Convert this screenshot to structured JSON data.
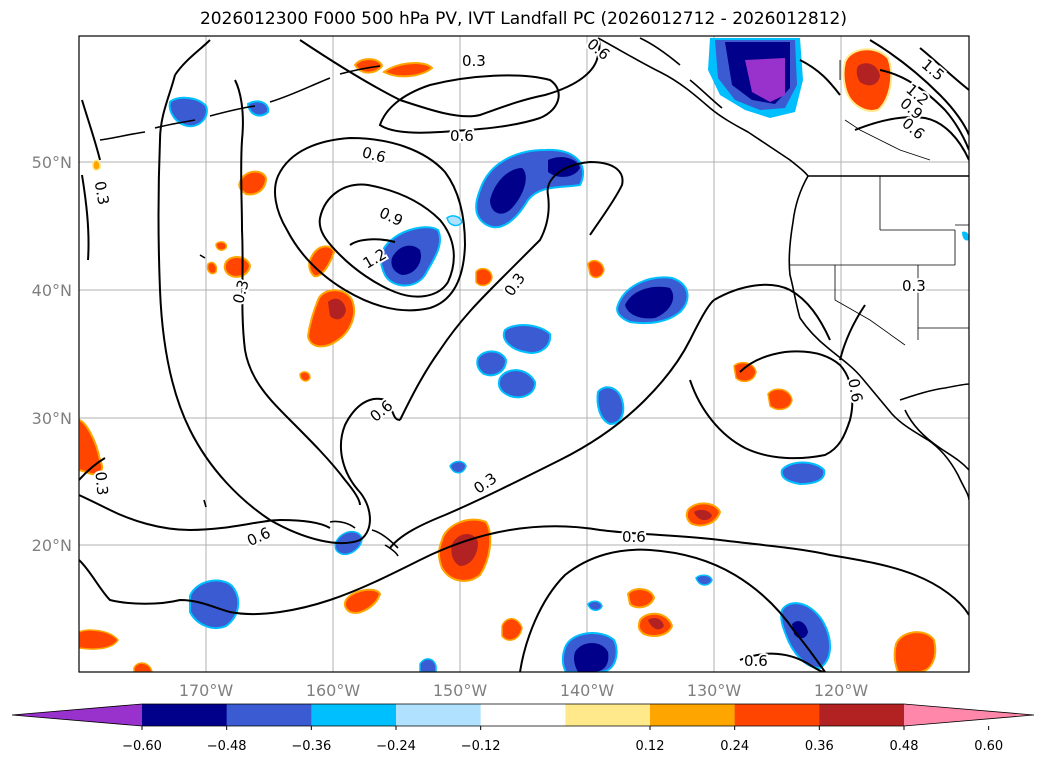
{
  "title": "2026012300 F000 500 hPa PV, IVT Landfall PC (2026012712 - 2026012812)",
  "lat_labels": [
    "50°N",
    "40°N",
    "30°N",
    "20°N"
  ],
  "lon_labels": [
    "170°W",
    "160°W",
    "150°W",
    "140°W",
    "130°W",
    "120°W"
  ],
  "contour_labels": [
    "0.3",
    "0.3",
    "0.3",
    "0.3",
    "0.3",
    "0.3",
    "0.6",
    "0.6",
    "0.6",
    "0.6",
    "0.6",
    "0.6",
    "0.6",
    "0.9",
    "1.2",
    "0.3",
    "1.5",
    "1.2",
    "0.9",
    "0.6",
    "0.6"
  ],
  "colorbar": {
    "ticks": [
      "−0.60",
      "−0.48",
      "−0.36",
      "−0.24",
      "−0.12",
      "0.12",
      "0.24",
      "0.36",
      "0.48",
      "0.60"
    ],
    "colors": [
      "#9932cc",
      "#00008b",
      "#3a5bd1",
      "#00bfff",
      "#b0e2ff",
      "#ffffff",
      "#ffe98a",
      "#ffa500",
      "#ff4500",
      "#b22222",
      "#ff88aa"
    ]
  },
  "fill_colors": {
    "neg_strong": "#9932cc",
    "neg_dark": "#00008b",
    "neg_mid": "#3a5bd1",
    "neg_light": "#00bfff",
    "pos_light": "#ffe98a",
    "pos_mid": "#ffa500",
    "pos_strong": "#ff4500",
    "pos_dark": "#b22222"
  }
}
